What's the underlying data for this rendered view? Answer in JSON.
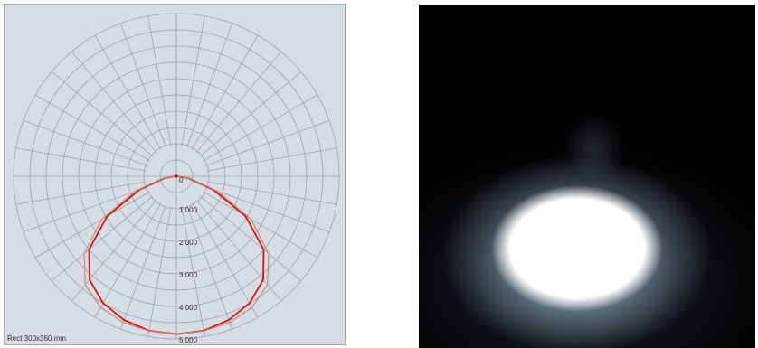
{
  "chart_data": {
    "type": "polar",
    "caption": "Rect 300x360 mm",
    "radial_ticks": [
      {
        "value": 0,
        "label": "0"
      },
      {
        "value": 1000,
        "label": "1 000"
      },
      {
        "value": 2000,
        "label": "2 000"
      },
      {
        "value": 3000,
        "label": "3 000"
      },
      {
        "value": 4000,
        "label": "4 000"
      },
      {
        "value": 5000,
        "label": "5 000"
      }
    ],
    "radial_range": [
      0,
      5000
    ],
    "angular_step_deg": 10,
    "grid": true,
    "series": [
      {
        "color": "#e01010",
        "angles": [
          0,
          10,
          20,
          30,
          40,
          50,
          60,
          70,
          80,
          90
        ],
        "values": [
          4850,
          4820,
          4700,
          4500,
          4150,
          3500,
          2450,
          1200,
          400,
          60
        ]
      },
      {
        "color": "#c88878",
        "angles": [
          0,
          10,
          20,
          30,
          40,
          50,
          60,
          70,
          80,
          90
        ],
        "values": [
          4850,
          4830,
          4780,
          4650,
          4350,
          3700,
          2650,
          1350,
          450,
          60
        ]
      }
    ]
  },
  "render_panel": {
    "background": "#000000",
    "glow_color": "#ffffff"
  }
}
